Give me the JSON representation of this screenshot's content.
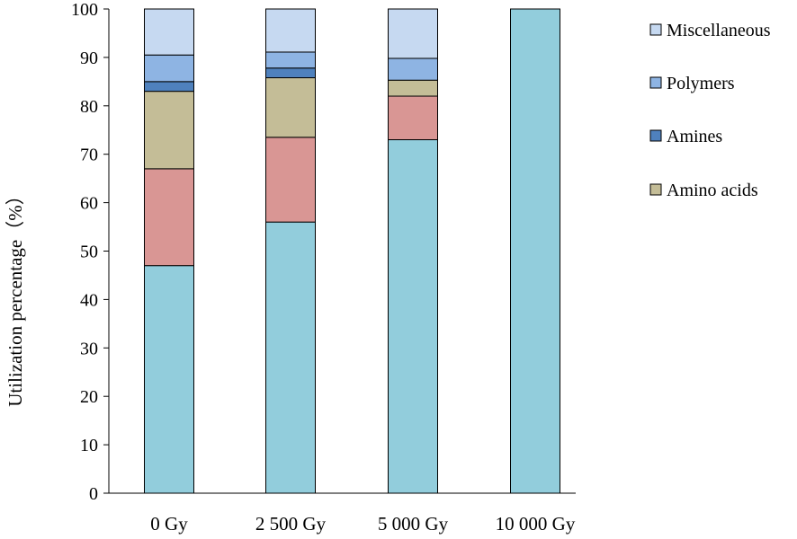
{
  "chart_data": {
    "type": "bar",
    "stacked": true,
    "title": "",
    "xlabel": "",
    "ylabel": "Utilization percentage（%）",
    "ylim": [
      0,
      100
    ],
    "yticks": [
      0,
      10,
      20,
      30,
      40,
      50,
      60,
      70,
      80,
      90,
      100
    ],
    "grid": false,
    "legend_position": "right",
    "categories": [
      "0 Gy",
      "2 500 Gy",
      "5 000 Gy",
      "10 000 Gy"
    ],
    "series": [
      {
        "color": "#92CDDC",
        "values": [
          47,
          56,
          73,
          100
        ]
      },
      {
        "color": "#D99694",
        "values": [
          20,
          17.5,
          9,
          0
        ]
      },
      {
        "name": "Amino acids",
        "color": "#C4BD97",
        "values": [
          16,
          12.3,
          3.3,
          0
        ]
      },
      {
        "name": "Amines",
        "color": "#4F81BD",
        "values": [
          2,
          2,
          0,
          0
        ]
      },
      {
        "name": "Polymers",
        "color": "#8EB4E3",
        "values": [
          5.5,
          3.3,
          4.5,
          0
        ]
      },
      {
        "name": "Miscellaneous",
        "color": "#C6D9F1",
        "values": [
          9.5,
          8.9,
          10.2,
          0
        ]
      }
    ],
    "legend_order": [
      "Miscellaneous",
      "Polymers",
      "Amines",
      "Amino acids"
    ]
  }
}
